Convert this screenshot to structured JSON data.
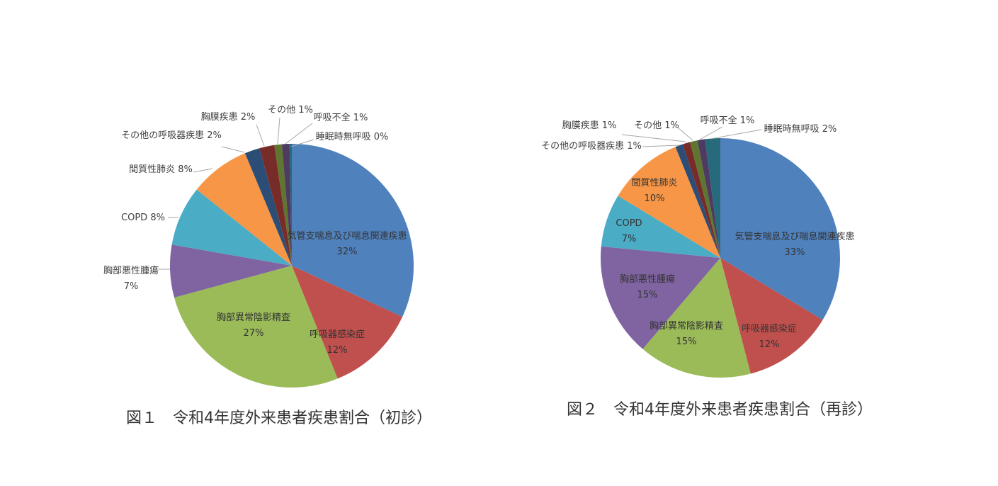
{
  "chart_data": [
    {
      "type": "pie",
      "title": "図１　令和4年度外来患者疾患割合（初診）",
      "slices": [
        {
          "label": "気管支喘息及び喘息関連疾患",
          "value": 32,
          "text": "32%",
          "color": "#4f81bd"
        },
        {
          "label": "呼吸器感染症",
          "value": 12,
          "text": "12%",
          "color": "#c0504d"
        },
        {
          "label": "胸部異常陰影精査",
          "value": 27,
          "text": "27%",
          "color": "#9bbb59"
        },
        {
          "label": "胸部悪性腫瘍",
          "value": 7,
          "text": "7%",
          "color": "#8064a2"
        },
        {
          "label": "COPD",
          "value": 8,
          "text": "8%",
          "color": "#4bacc6"
        },
        {
          "label": "間質性肺炎",
          "value": 8,
          "text": "8%",
          "color": "#f79646"
        },
        {
          "label": "その他の呼吸器疾患",
          "value": 2,
          "text": "2%",
          "color": "#2c4d75"
        },
        {
          "label": "胸膜疾患",
          "value": 2,
          "text": "2%",
          "color": "#772c2a"
        },
        {
          "label": "その他",
          "value": 1,
          "text": "1%",
          "color": "#5f7530"
        },
        {
          "label": "呼吸不全",
          "value": 1,
          "text": "1%",
          "color": "#4d3b62"
        },
        {
          "label": "睡眠時無呼吸",
          "value": 0.3,
          "text": "0%",
          "color": "#276a7c"
        }
      ]
    },
    {
      "type": "pie",
      "title": "図２　令和4年度外来患者疾患割合（再診）",
      "slices": [
        {
          "label": "気管支喘息及び喘息関連疾患",
          "value": 33,
          "text": "33%",
          "color": "#4f81bd"
        },
        {
          "label": "呼吸器感染症",
          "value": 12,
          "text": "12%",
          "color": "#c0504d"
        },
        {
          "label": "胸部異常陰影精査",
          "value": 15,
          "text": "15%",
          "color": "#9bbb59"
        },
        {
          "label": "胸部悪性腫瘍",
          "value": 15,
          "text": "15%",
          "color": "#8064a2"
        },
        {
          "label": "COPD",
          "value": 7,
          "text": "7%",
          "color": "#4bacc6"
        },
        {
          "label": "間質性肺炎",
          "value": 10,
          "text": "10%",
          "color": "#f79646"
        },
        {
          "label": "その他の呼吸器疾患",
          "value": 1,
          "text": "1%",
          "color": "#2c4d75"
        },
        {
          "label": "胸膜疾患",
          "value": 1,
          "text": "1%",
          "color": "#772c2a"
        },
        {
          "label": "その他",
          "value": 1,
          "text": "1%",
          "color": "#5f7530"
        },
        {
          "label": "呼吸不全",
          "value": 1,
          "text": "1%",
          "color": "#4d3b62"
        },
        {
          "label": "睡眠時無呼吸",
          "value": 2,
          "text": "2%",
          "color": "#276a7c"
        }
      ]
    }
  ]
}
